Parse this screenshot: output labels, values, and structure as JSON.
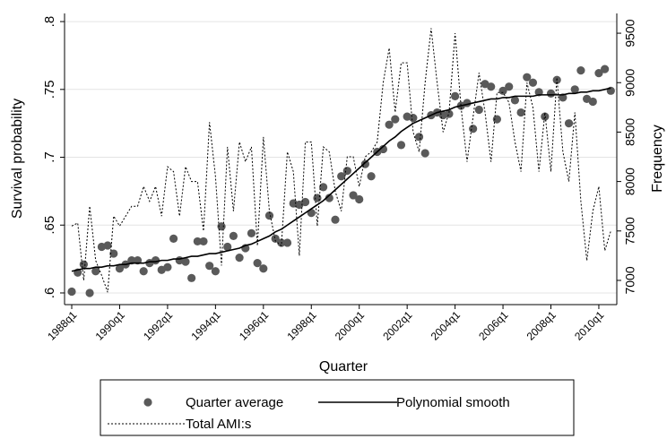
{
  "chart_data": {
    "type": "line",
    "xlabel": "Quarter",
    "ylabel": "Survival probability",
    "y2label": "Frequency",
    "grid": true,
    "x": [
      112,
      113,
      114,
      115,
      116,
      117,
      118,
      119,
      120,
      121,
      122,
      123,
      124,
      125,
      126,
      127,
      128,
      129,
      130,
      131,
      132,
      133,
      134,
      135,
      136,
      137,
      138,
      139,
      140,
      141,
      142,
      143,
      144,
      145,
      146,
      147,
      148,
      149,
      150,
      151,
      152,
      153,
      154,
      155,
      156,
      157,
      158,
      159,
      160,
      161,
      162,
      163,
      164,
      165,
      166,
      167,
      168,
      169,
      170,
      171,
      172,
      173,
      174,
      175,
      176,
      177,
      178,
      179,
      180,
      181,
      182,
      183,
      184,
      185,
      186,
      187,
      188,
      189,
      190,
      191,
      192,
      193,
      194,
      195,
      196,
      197,
      198,
      199,
      200,
      201,
      202
    ],
    "series": [
      {
        "name": "Quarter average",
        "type": "scatter",
        "color": "#5a5a5a",
        "axis": "y",
        "values": [
          0.601,
          0.615,
          0.621,
          0.6,
          0.616,
          0.634,
          0.635,
          0.629,
          0.618,
          0.621,
          0.624,
          0.624,
          0.616,
          0.622,
          0.624,
          0.617,
          0.619,
          0.64,
          0.624,
          0.623,
          0.611,
          0.638,
          0.638,
          0.62,
          0.616,
          0.649,
          0.634,
          0.642,
          0.626,
          0.633,
          0.644,
          0.622,
          0.618,
          0.657,
          0.64,
          0.637,
          0.637,
          0.666,
          0.665,
          0.667,
          0.659,
          0.67,
          0.678,
          0.67,
          0.654,
          0.686,
          0.69,
          0.672,
          0.669,
          0.695,
          0.686,
          0.704,
          0.706,
          0.724,
          0.728,
          0.709,
          0.73,
          0.729,
          0.715,
          0.703,
          0.731,
          0.733,
          0.731,
          0.732,
          0.745,
          0.738,
          0.74,
          0.721,
          0.735,
          0.754,
          0.752,
          0.728,
          0.749,
          0.752,
          0.742,
          0.733,
          0.759,
          0.755,
          0.748,
          0.73,
          0.747,
          0.757,
          0.744,
          0.725,
          0.75,
          0.764,
          0.743,
          0.741,
          0.762,
          0.765,
          0.749
        ]
      },
      {
        "name": "Polynomial smooth",
        "type": "line",
        "color": "#000000",
        "axis": "y",
        "dash": "solid",
        "values": [
          0.616,
          0.617,
          0.618,
          0.618,
          0.619,
          0.619,
          0.62,
          0.62,
          0.621,
          0.621,
          0.622,
          0.622,
          0.622,
          0.623,
          0.623,
          0.624,
          0.624,
          0.625,
          0.625,
          0.626,
          0.627,
          0.627,
          0.628,
          0.629,
          0.629,
          0.63,
          0.631,
          0.632,
          0.633,
          0.635,
          0.636,
          0.638,
          0.64,
          0.642,
          0.645,
          0.647,
          0.65,
          0.653,
          0.656,
          0.659,
          0.662,
          0.665,
          0.668,
          0.672,
          0.676,
          0.68,
          0.684,
          0.688,
          0.692,
          0.696,
          0.7,
          0.704,
          0.708,
          0.712,
          0.715,
          0.719,
          0.722,
          0.725,
          0.727,
          0.729,
          0.731,
          0.733,
          0.734,
          0.735,
          0.737,
          0.738,
          0.739,
          0.74,
          0.741,
          0.742,
          0.743,
          0.743,
          0.744,
          0.744,
          0.745,
          0.745,
          0.745,
          0.745,
          0.746,
          0.746,
          0.746,
          0.746,
          0.746,
          0.747,
          0.747,
          0.748,
          0.748,
          0.749,
          0.749,
          0.75,
          0.751
        ]
      },
      {
        "name": "Total AMI:s",
        "type": "line",
        "color": "#000000",
        "axis": "y2",
        "dash": "dotted",
        "values": [
          7550,
          7580,
          7000,
          7750,
          7200,
          7050,
          6880,
          7650,
          7550,
          7650,
          7750,
          7750,
          7950,
          7800,
          7950,
          7650,
          8150,
          8100,
          7650,
          8150,
          8000,
          8000,
          7500,
          8600,
          8050,
          7150,
          8350,
          7700,
          8400,
          8200,
          8350,
          7350,
          8450,
          7700,
          7400,
          7350,
          8300,
          8100,
          7250,
          8400,
          8400,
          7550,
          8350,
          8300,
          7900,
          7700,
          8250,
          8250,
          7950,
          8250,
          8300,
          8400,
          9000,
          9350,
          8700,
          9200,
          9200,
          8500,
          8300,
          9000,
          9550,
          9000,
          8500,
          8700,
          9500,
          8750,
          8200,
          8650,
          9100,
          8700,
          8200,
          8900,
          8900,
          8800,
          8400,
          8100,
          9000,
          8750,
          8100,
          8700,
          8100,
          9050,
          8300,
          8000,
          8700,
          7800,
          7200,
          7700,
          7950,
          7300,
          7500
        ]
      }
    ],
    "xlim": [
      110.8,
      203
    ],
    "xticks": [
      {
        "value": 112,
        "label": "1988q1"
      },
      {
        "value": 120,
        "label": "1990q1"
      },
      {
        "value": 128,
        "label": "1992q1"
      },
      {
        "value": 136,
        "label": "1994q1"
      },
      {
        "value": 144,
        "label": "1996q1"
      },
      {
        "value": 152,
        "label": "1998q1"
      },
      {
        "value": 160,
        "label": "2000q1"
      },
      {
        "value": 168,
        "label": "2002q1"
      },
      {
        "value": 176,
        "label": "2004q1"
      },
      {
        "value": 184,
        "label": "2006q1"
      },
      {
        "value": 192,
        "label": "2008q1"
      },
      {
        "value": 200,
        "label": "2010q1"
      }
    ],
    "ylim": [
      0.5914,
      0.806
    ],
    "yticks": [
      {
        "value": 0.6,
        "label": ".6"
      },
      {
        "value": 0.65,
        "label": ".65"
      },
      {
        "value": 0.7,
        "label": ".7"
      },
      {
        "value": 0.75,
        "label": ".75"
      },
      {
        "value": 0.8,
        "label": ".8"
      }
    ],
    "y2lim": [
      6755,
      9700
    ],
    "y2ticks": [
      7000,
      7500,
      8000,
      8500,
      9000,
      9500
    ]
  }
}
